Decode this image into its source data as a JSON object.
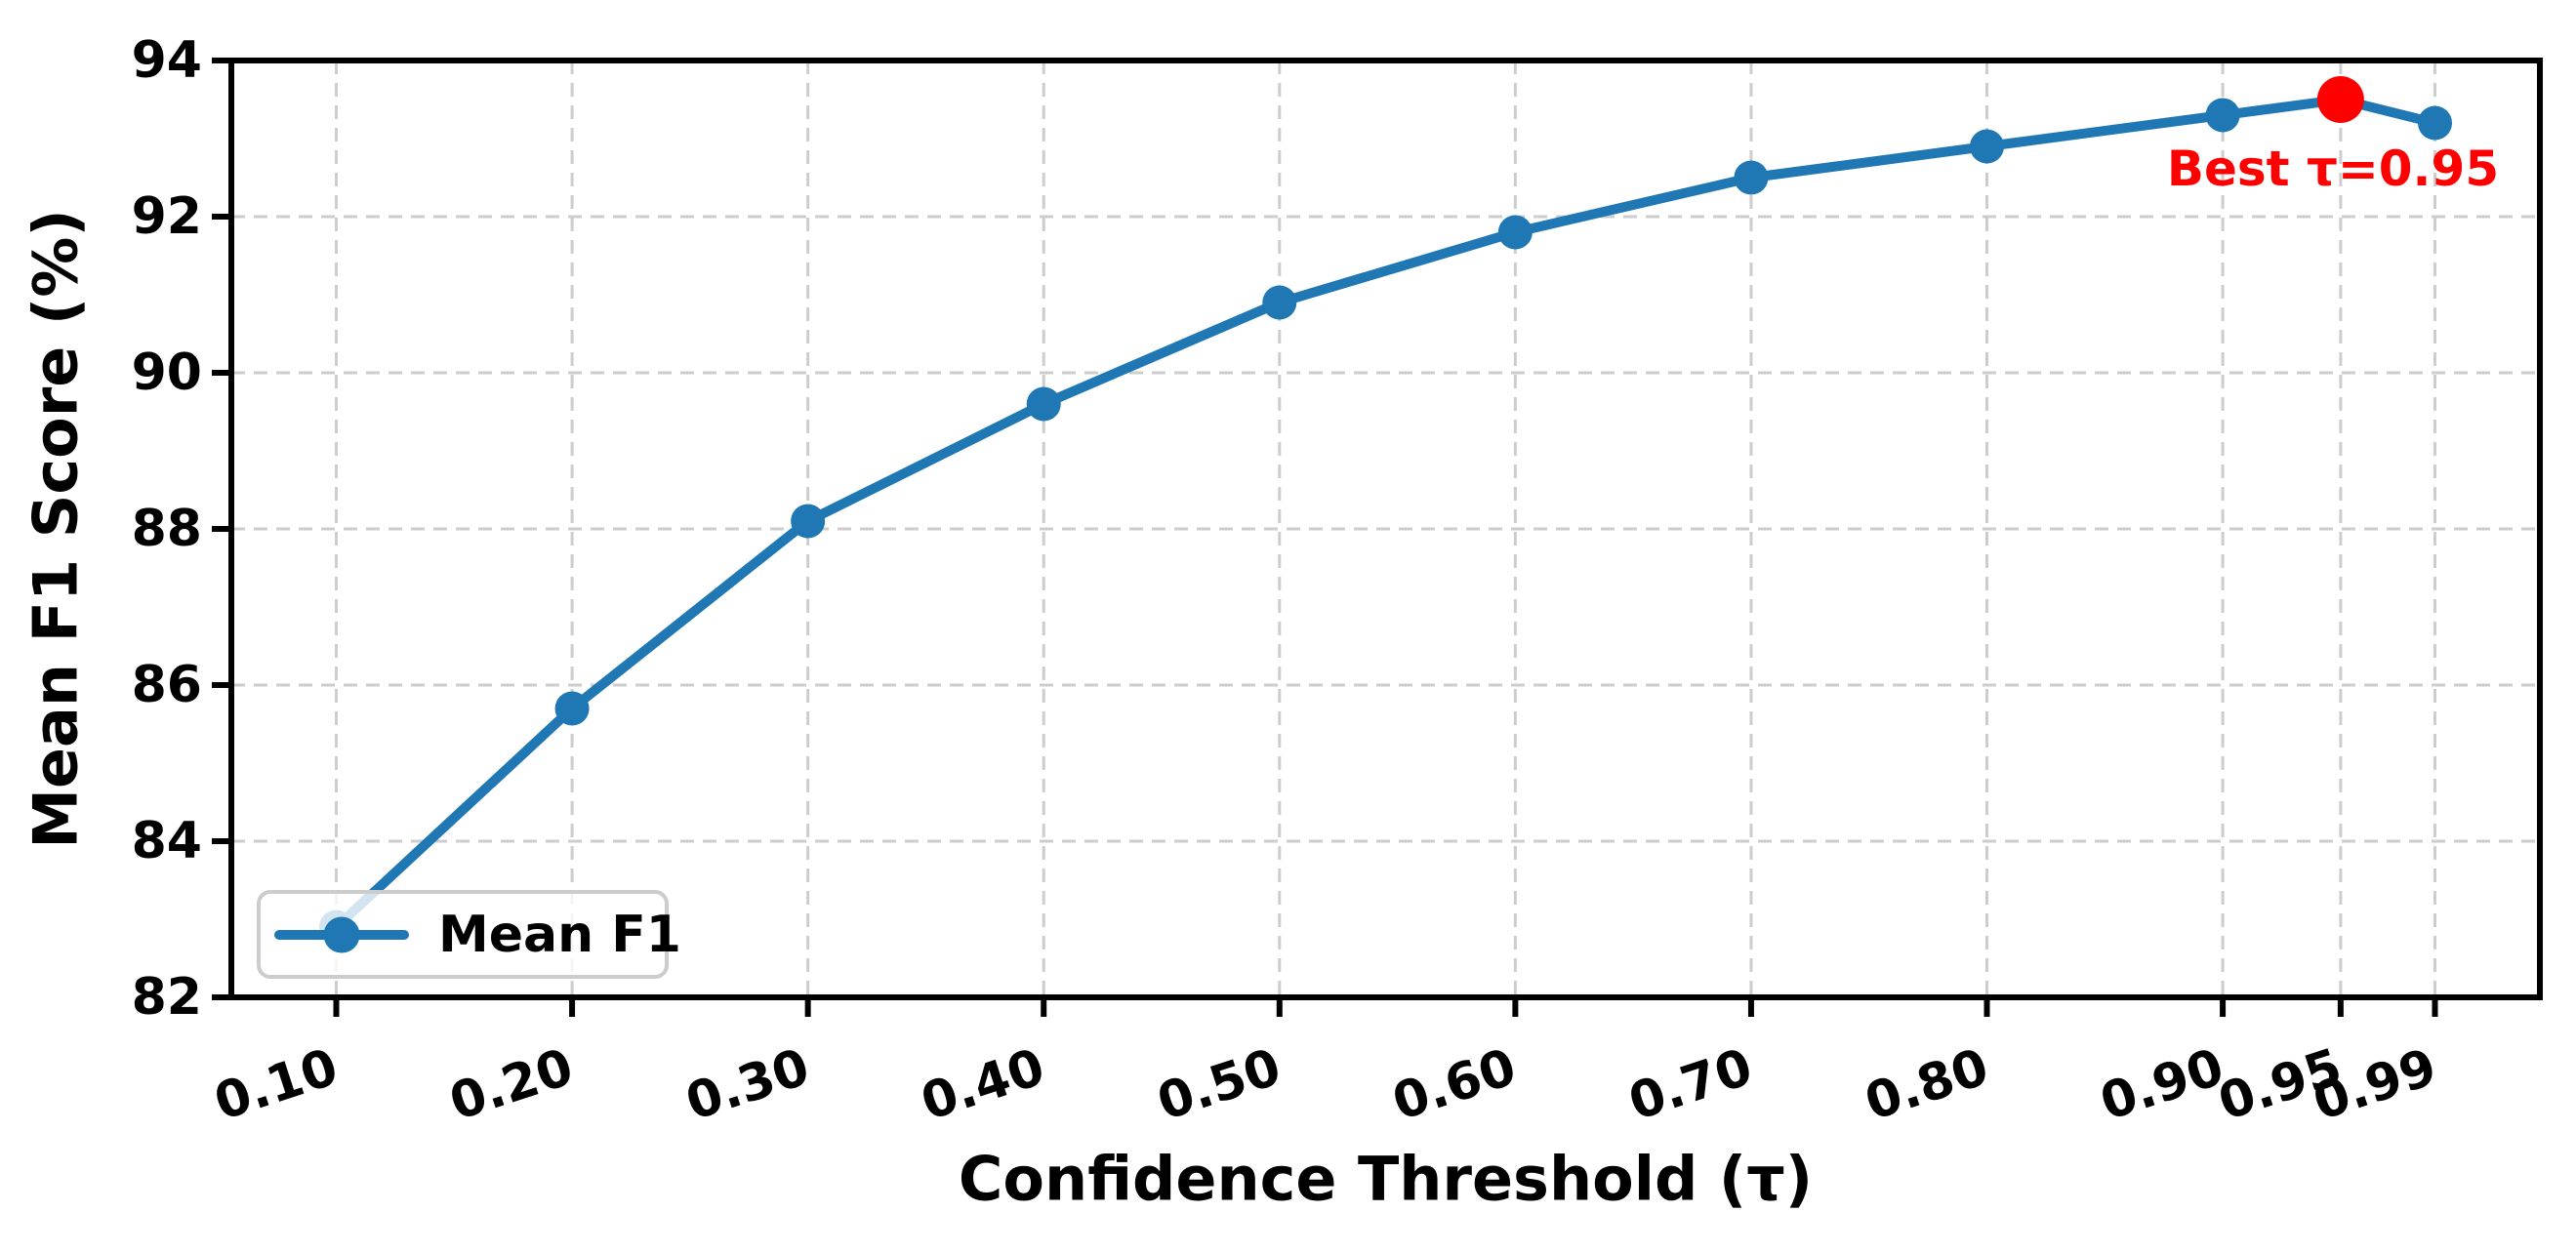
{
  "figure": {
    "ylabel": "Mean F1 Score (%)",
    "xlabel": "Confidence Threshold (τ)",
    "legend": {
      "label": "Mean F1"
    },
    "annotation": {
      "text": "Best τ=0.95",
      "color": "#ff0000"
    },
    "colors": {
      "series_blue": "#1f77b4",
      "best_red": "#ff0000",
      "grid_gray": "#c8c8c8",
      "legend_border": "#cccccc",
      "axis_black": "#000000"
    }
  },
  "chart_data": {
    "type": "line",
    "title": "",
    "xlabel": "Confidence Threshold (τ)",
    "ylabel": "Mean F1 Score (%)",
    "x": [
      0.1,
      0.2,
      0.3,
      0.4,
      0.5,
      0.6,
      0.7,
      0.8,
      0.9,
      0.95,
      0.99
    ],
    "x_tick_labels": [
      "0.10",
      "0.20",
      "0.30",
      "0.40",
      "0.50",
      "0.60",
      "0.70",
      "0.80",
      "0.90",
      "0.95",
      "0.99"
    ],
    "y_ticks": [
      82,
      84,
      86,
      88,
      90,
      92,
      94
    ],
    "y_tick_labels": [
      "82",
      "84",
      "86",
      "88",
      "90",
      "92",
      "94"
    ],
    "xlim": [
      0.0555,
      1.0345
    ],
    "ylim": [
      82,
      94
    ],
    "grid": true,
    "legend_position": "lower left",
    "series": [
      {
        "name": "Mean F1",
        "color": "#1f77b4",
        "values": [
          82.9,
          85.7,
          88.1,
          89.6,
          90.9,
          91.8,
          92.5,
          92.9,
          93.3,
          93.5,
          93.2
        ]
      }
    ],
    "best_point": {
      "x": 0.95,
      "y": 93.5,
      "color": "#ff0000",
      "label": "Best τ=0.95"
    }
  }
}
